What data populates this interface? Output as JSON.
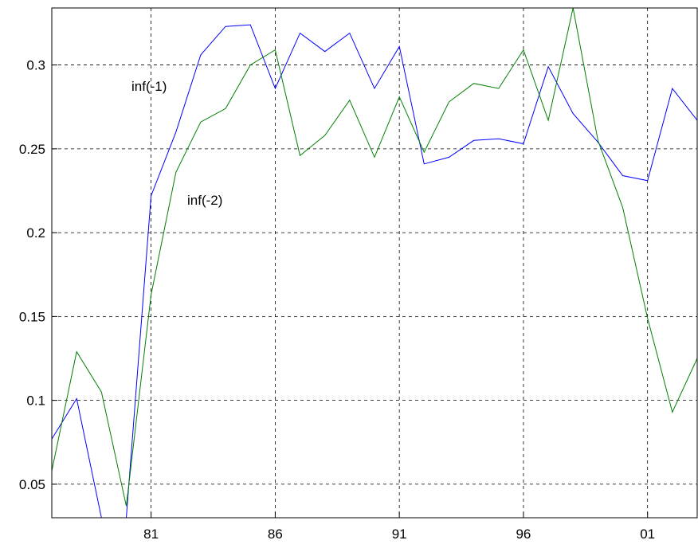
{
  "chart_data": {
    "type": "line",
    "x": [
      1977,
      1978,
      1979,
      1980,
      1981,
      1982,
      1983,
      1984,
      1985,
      1986,
      1987,
      1988,
      1989,
      1990,
      1991,
      1992,
      1993,
      1994,
      1995,
      1996,
      1997,
      1998,
      1999,
      2000,
      2001,
      2002,
      2003
    ],
    "series": [
      {
        "name": "inf(-1)",
        "color": "#0000ff",
        "values": [
          0.077,
          0.101,
          0.03,
          0.03,
          0.222,
          0.26,
          0.306,
          0.323,
          0.324,
          0.286,
          0.319,
          0.308,
          0.319,
          0.286,
          0.311,
          0.241,
          0.245,
          0.255,
          0.256,
          0.253,
          0.299,
          0.271,
          0.254,
          0.234,
          0.231,
          0.286,
          0.267
        ]
      },
      {
        "name": "inf(-2)",
        "color": "#008000",
        "values": [
          0.058,
          0.129,
          0.105,
          0.037,
          0.163,
          0.236,
          0.266,
          0.274,
          0.3,
          0.309,
          0.246,
          0.258,
          0.279,
          0.245,
          0.281,
          0.248,
          0.278,
          0.289,
          0.286,
          0.309,
          0.267,
          0.334,
          0.255,
          0.215,
          0.149,
          0.093,
          0.125
        ]
      }
    ],
    "xlim": [
      1977,
      2003
    ],
    "ylim": [
      0.03,
      0.334
    ],
    "xticks": [
      {
        "value": 1981,
        "label": "81"
      },
      {
        "value": 1986,
        "label": "86"
      },
      {
        "value": 1991,
        "label": "91"
      },
      {
        "value": 1996,
        "label": "96"
      },
      {
        "value": 2001,
        "label": "01"
      }
    ],
    "yticks": [
      0.05,
      0.1,
      0.15,
      0.2,
      0.25,
      0.3
    ],
    "grid": true
  }
}
